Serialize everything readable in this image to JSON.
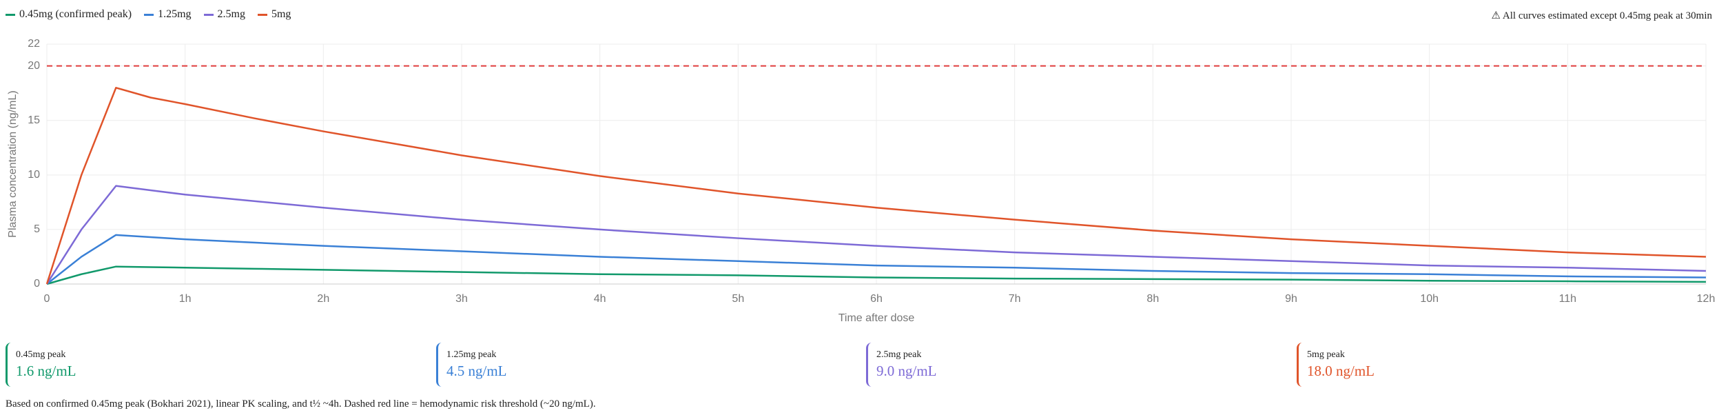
{
  "chart_data": {
    "type": "line",
    "note": "⚠ All curves estimated except 0.45mg peak at 30min",
    "x_label": "Time after dose",
    "y_label": "Plasma concentration (ng/mL)",
    "x": [
      0,
      0.25,
      0.5,
      0.75,
      1,
      1.5,
      2,
      3,
      4,
      5,
      6,
      7,
      8,
      9,
      10,
      11,
      12
    ],
    "series": [
      {
        "name": "0.45mg (confirmed peak)",
        "color": "#11996b",
        "values": [
          0,
          0.9,
          1.6,
          1.55,
          1.5,
          1.4,
          1.3,
          1.1,
          0.9,
          0.8,
          0.6,
          0.5,
          0.45,
          0.4,
          0.3,
          0.25,
          0.2
        ]
      },
      {
        "name": "1.25mg",
        "color": "#3a80d6",
        "values": [
          0,
          2.5,
          4.5,
          4.3,
          4.1,
          3.8,
          3.5,
          3,
          2.5,
          2.1,
          1.7,
          1.5,
          1.2,
          1,
          0.9,
          0.7,
          0.6
        ]
      },
      {
        "name": "2.5mg",
        "color": "#7d6ad6",
        "values": [
          0,
          5,
          9,
          8.6,
          8.2,
          7.6,
          7,
          5.9,
          5,
          4.2,
          3.5,
          2.9,
          2.5,
          2.1,
          1.7,
          1.5,
          1.2
        ]
      },
      {
        "name": "5mg",
        "color": "#e0542a",
        "values": [
          0,
          10,
          18,
          17.1,
          16.5,
          15.2,
          14,
          11.8,
          9.9,
          8.3,
          7,
          5.9,
          4.9,
          4.1,
          3.5,
          2.9,
          2.5
        ]
      }
    ],
    "threshold": 20,
    "threshold_color": "#e03b3b",
    "xlim": [
      0,
      12
    ],
    "xticks": [
      0,
      {
        "value": 1,
        "label": "1h"
      },
      {
        "value": 2,
        "label": "2h"
      },
      {
        "value": 3,
        "label": "3h"
      },
      {
        "value": 4,
        "label": "4h"
      },
      {
        "value": 5,
        "label": "5h"
      },
      {
        "value": 6,
        "label": "6h"
      },
      {
        "value": 7,
        "label": "7h"
      },
      {
        "value": 8,
        "label": "8h"
      },
      {
        "value": 9,
        "label": "9h"
      },
      {
        "value": 10,
        "label": "10h"
      },
      {
        "value": 11,
        "label": "11h"
      },
      {
        "value": 12,
        "label": "12h"
      }
    ],
    "ylim": [
      0,
      22
    ],
    "yticks": [
      0,
      5,
      10,
      15,
      20,
      22
    ],
    "grid": true
  },
  "peaks": [
    {
      "label": "0.45mg peak",
      "value": "1.6 ng/mL"
    },
    {
      "label": "1.25mg peak",
      "value": "4.5 ng/mL"
    },
    {
      "label": "2.5mg peak",
      "value": "9.0 ng/mL"
    },
    {
      "label": "5mg peak",
      "value": "18.0 ng/mL"
    }
  ],
  "footnote": "Based on confirmed 0.45mg peak (Bokhari 2021), linear PK scaling, and t½ ~4h. Dashed red line = hemodynamic risk threshold (~20 ng/mL)."
}
